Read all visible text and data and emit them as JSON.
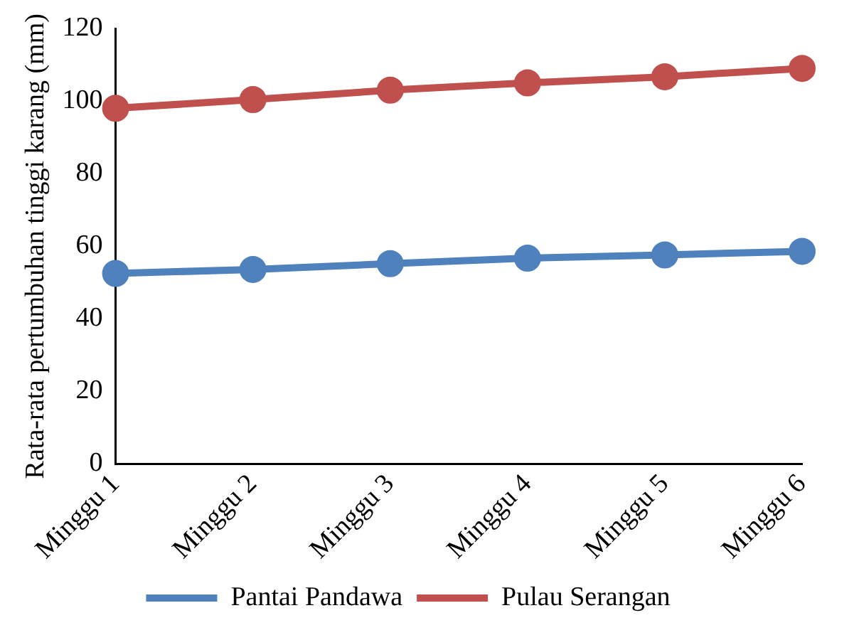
{
  "chart_data": {
    "type": "line",
    "ylabel": "Rata-rata pertumbuhan tinggi karang (mm)",
    "categories": [
      "Minggu 1",
      "Minggu 2",
      "Minggu 3",
      "Minggu 4",
      "Minggu 5",
      "Minggu 6"
    ],
    "series": [
      {
        "name": "Pantai Pandawa",
        "color": "#4f81bd",
        "values": [
          52.5,
          53.6,
          55.2,
          56.7,
          57.6,
          58.6
        ]
      },
      {
        "name": "Pulau Serangan",
        "color": "#c0504d",
        "values": [
          98,
          100.4,
          103,
          105,
          106.7,
          109
        ]
      }
    ],
    "ylim": [
      0,
      120
    ],
    "yticks": [
      0,
      20,
      40,
      60,
      80,
      100,
      120
    ],
    "grid": false,
    "legend": "bottom",
    "marker": "circle",
    "line_style": "solid"
  }
}
